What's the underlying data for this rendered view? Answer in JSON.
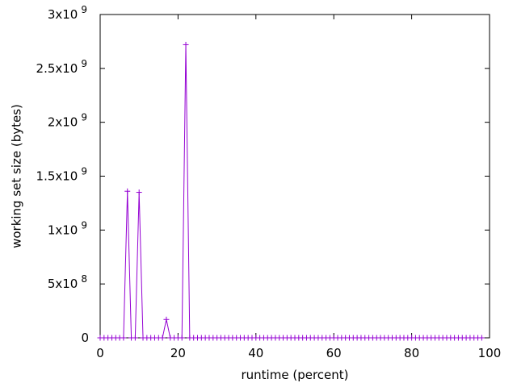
{
  "chart_data": {
    "type": "line",
    "title": "",
    "xlabel": "runtime (percent)",
    "ylabel": "working set size (bytes)",
    "xlim": [
      0,
      100
    ],
    "ylim": [
      0,
      3000000000
    ],
    "x_ticks": [
      0,
      20,
      40,
      60,
      80,
      100
    ],
    "x_tick_labels": [
      "0",
      "20",
      "40",
      "60",
      "80",
      "100"
    ],
    "y_ticks": [
      0,
      500000000,
      1000000000,
      1500000000,
      2000000000,
      2500000000,
      3000000000
    ],
    "y_tick_labels": [
      {
        "mantissa": "0",
        "exponent": ""
      },
      {
        "mantissa": "5x10",
        "exponent": "8"
      },
      {
        "mantissa": "1x10",
        "exponent": "9"
      },
      {
        "mantissa": "1.5x10",
        "exponent": "9"
      },
      {
        "mantissa": "2x10",
        "exponent": "9"
      },
      {
        "mantissa": "2.5x10",
        "exponent": "9"
      },
      {
        "mantissa": "3x10",
        "exponent": "9"
      }
    ],
    "grid": false,
    "legend": "none",
    "marker": "plus",
    "series_color": "#9400d3",
    "series": [
      {
        "x": [
          0,
          1,
          2,
          3,
          4,
          5,
          6,
          7,
          8,
          9,
          10,
          11,
          12,
          13,
          14,
          15,
          16,
          17,
          18,
          19,
          20,
          21,
          22,
          23,
          24,
          25,
          26,
          27,
          28,
          29,
          30,
          31,
          32,
          33,
          34,
          35,
          36,
          37,
          38,
          39,
          40,
          41,
          42,
          43,
          44,
          45,
          46,
          47,
          48,
          49,
          50,
          51,
          52,
          53,
          54,
          55,
          56,
          57,
          58,
          59,
          60,
          61,
          62,
          63,
          64,
          65,
          66,
          67,
          68,
          69,
          70,
          71,
          72,
          73,
          74,
          75,
          76,
          77,
          78,
          79,
          80,
          81,
          82,
          83,
          84,
          85,
          86,
          87,
          88,
          89,
          90,
          91,
          92,
          93,
          94,
          95,
          96,
          97,
          98
        ],
        "y": [
          0,
          0,
          0,
          0,
          0,
          0,
          0,
          1360000000,
          0,
          0,
          1350000000,
          0,
          0,
          0,
          0,
          0,
          0,
          170000000,
          0,
          0,
          0,
          0,
          2720000000,
          0,
          0,
          0,
          0,
          0,
          0,
          0,
          0,
          0,
          0,
          0,
          0,
          0,
          0,
          0,
          0,
          0,
          0,
          0,
          0,
          0,
          0,
          0,
          0,
          0,
          0,
          0,
          0,
          0,
          0,
          0,
          0,
          0,
          0,
          0,
          0,
          0,
          0,
          0,
          0,
          0,
          0,
          0,
          0,
          0,
          0,
          0,
          0,
          0,
          0,
          0,
          0,
          0,
          0,
          0,
          0,
          0,
          0,
          0,
          0,
          0,
          0,
          0,
          0,
          0,
          0,
          0,
          0,
          0,
          0,
          0,
          0,
          0,
          0,
          0,
          0
        ]
      }
    ]
  }
}
